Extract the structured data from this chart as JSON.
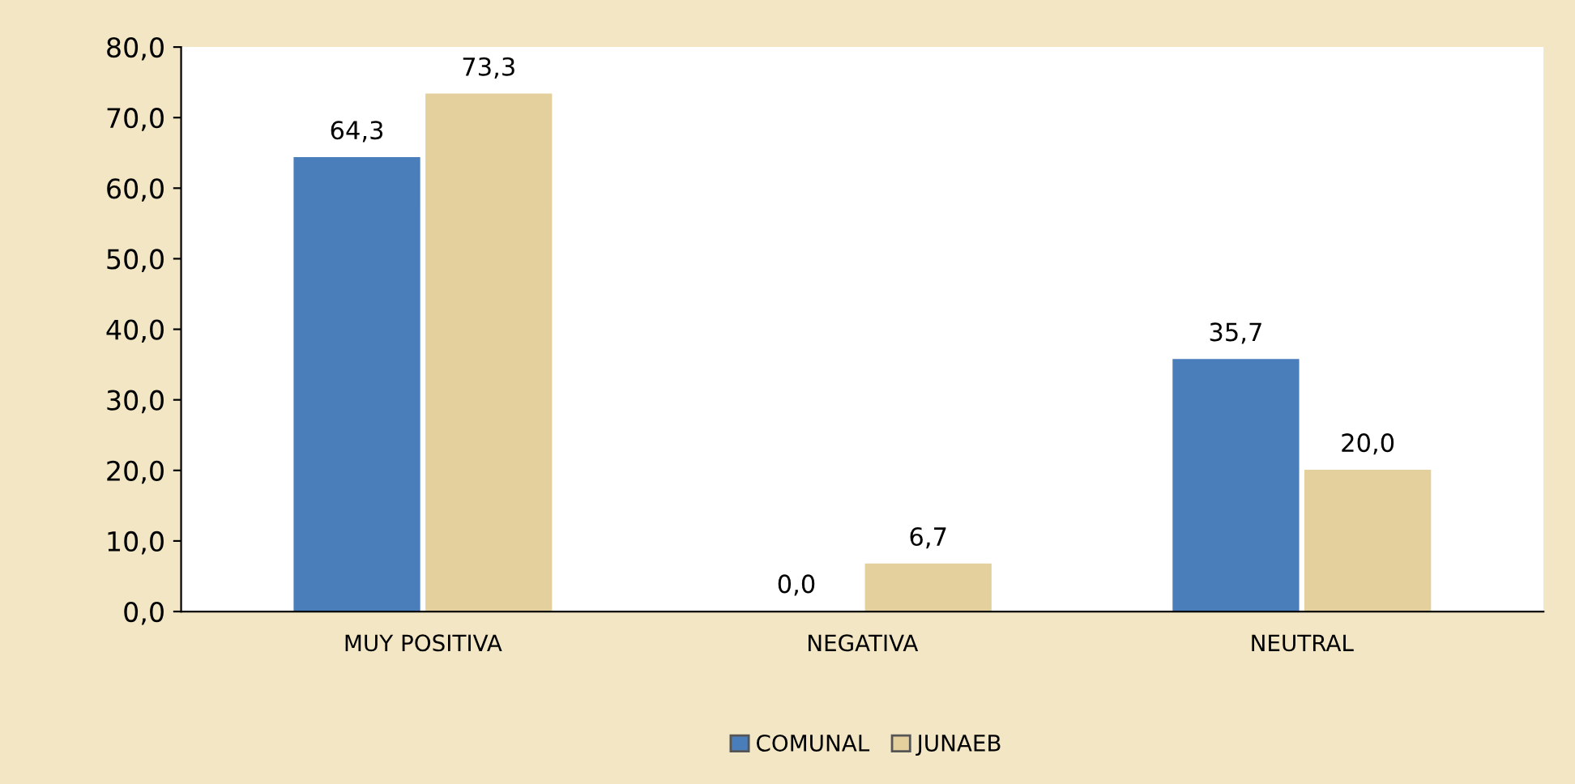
{
  "chart_data": {
    "type": "bar",
    "categories": [
      "MUY POSITIVA",
      "NEGATIVA",
      "NEUTRAL"
    ],
    "series": [
      {
        "name": "COMUNAL",
        "color": "#4a7ebb",
        "values": [
          64.3,
          0.0,
          35.7
        ],
        "value_labels": [
          "64,3",
          "0,0",
          "35,7"
        ]
      },
      {
        "name": "JUNAEB",
        "color": "#e3d09c",
        "values": [
          73.3,
          6.7,
          20.0
        ],
        "value_labels": [
          "73,3",
          "6,7",
          "20,0"
        ]
      }
    ],
    "ylim": [
      0,
      80
    ],
    "yticks": [
      {
        "value": 0,
        "label": "0,0"
      },
      {
        "value": 10,
        "label": "10,0"
      },
      {
        "value": 20,
        "label": "20,0"
      },
      {
        "value": 30,
        "label": "30,0"
      },
      {
        "value": 40,
        "label": "40,0"
      },
      {
        "value": 50,
        "label": "50,0"
      },
      {
        "value": 60,
        "label": "60,0"
      },
      {
        "value": 70,
        "label": "70,0"
      },
      {
        "value": 80,
        "label": "80,0"
      }
    ],
    "grid": false,
    "legend": "bottom"
  }
}
